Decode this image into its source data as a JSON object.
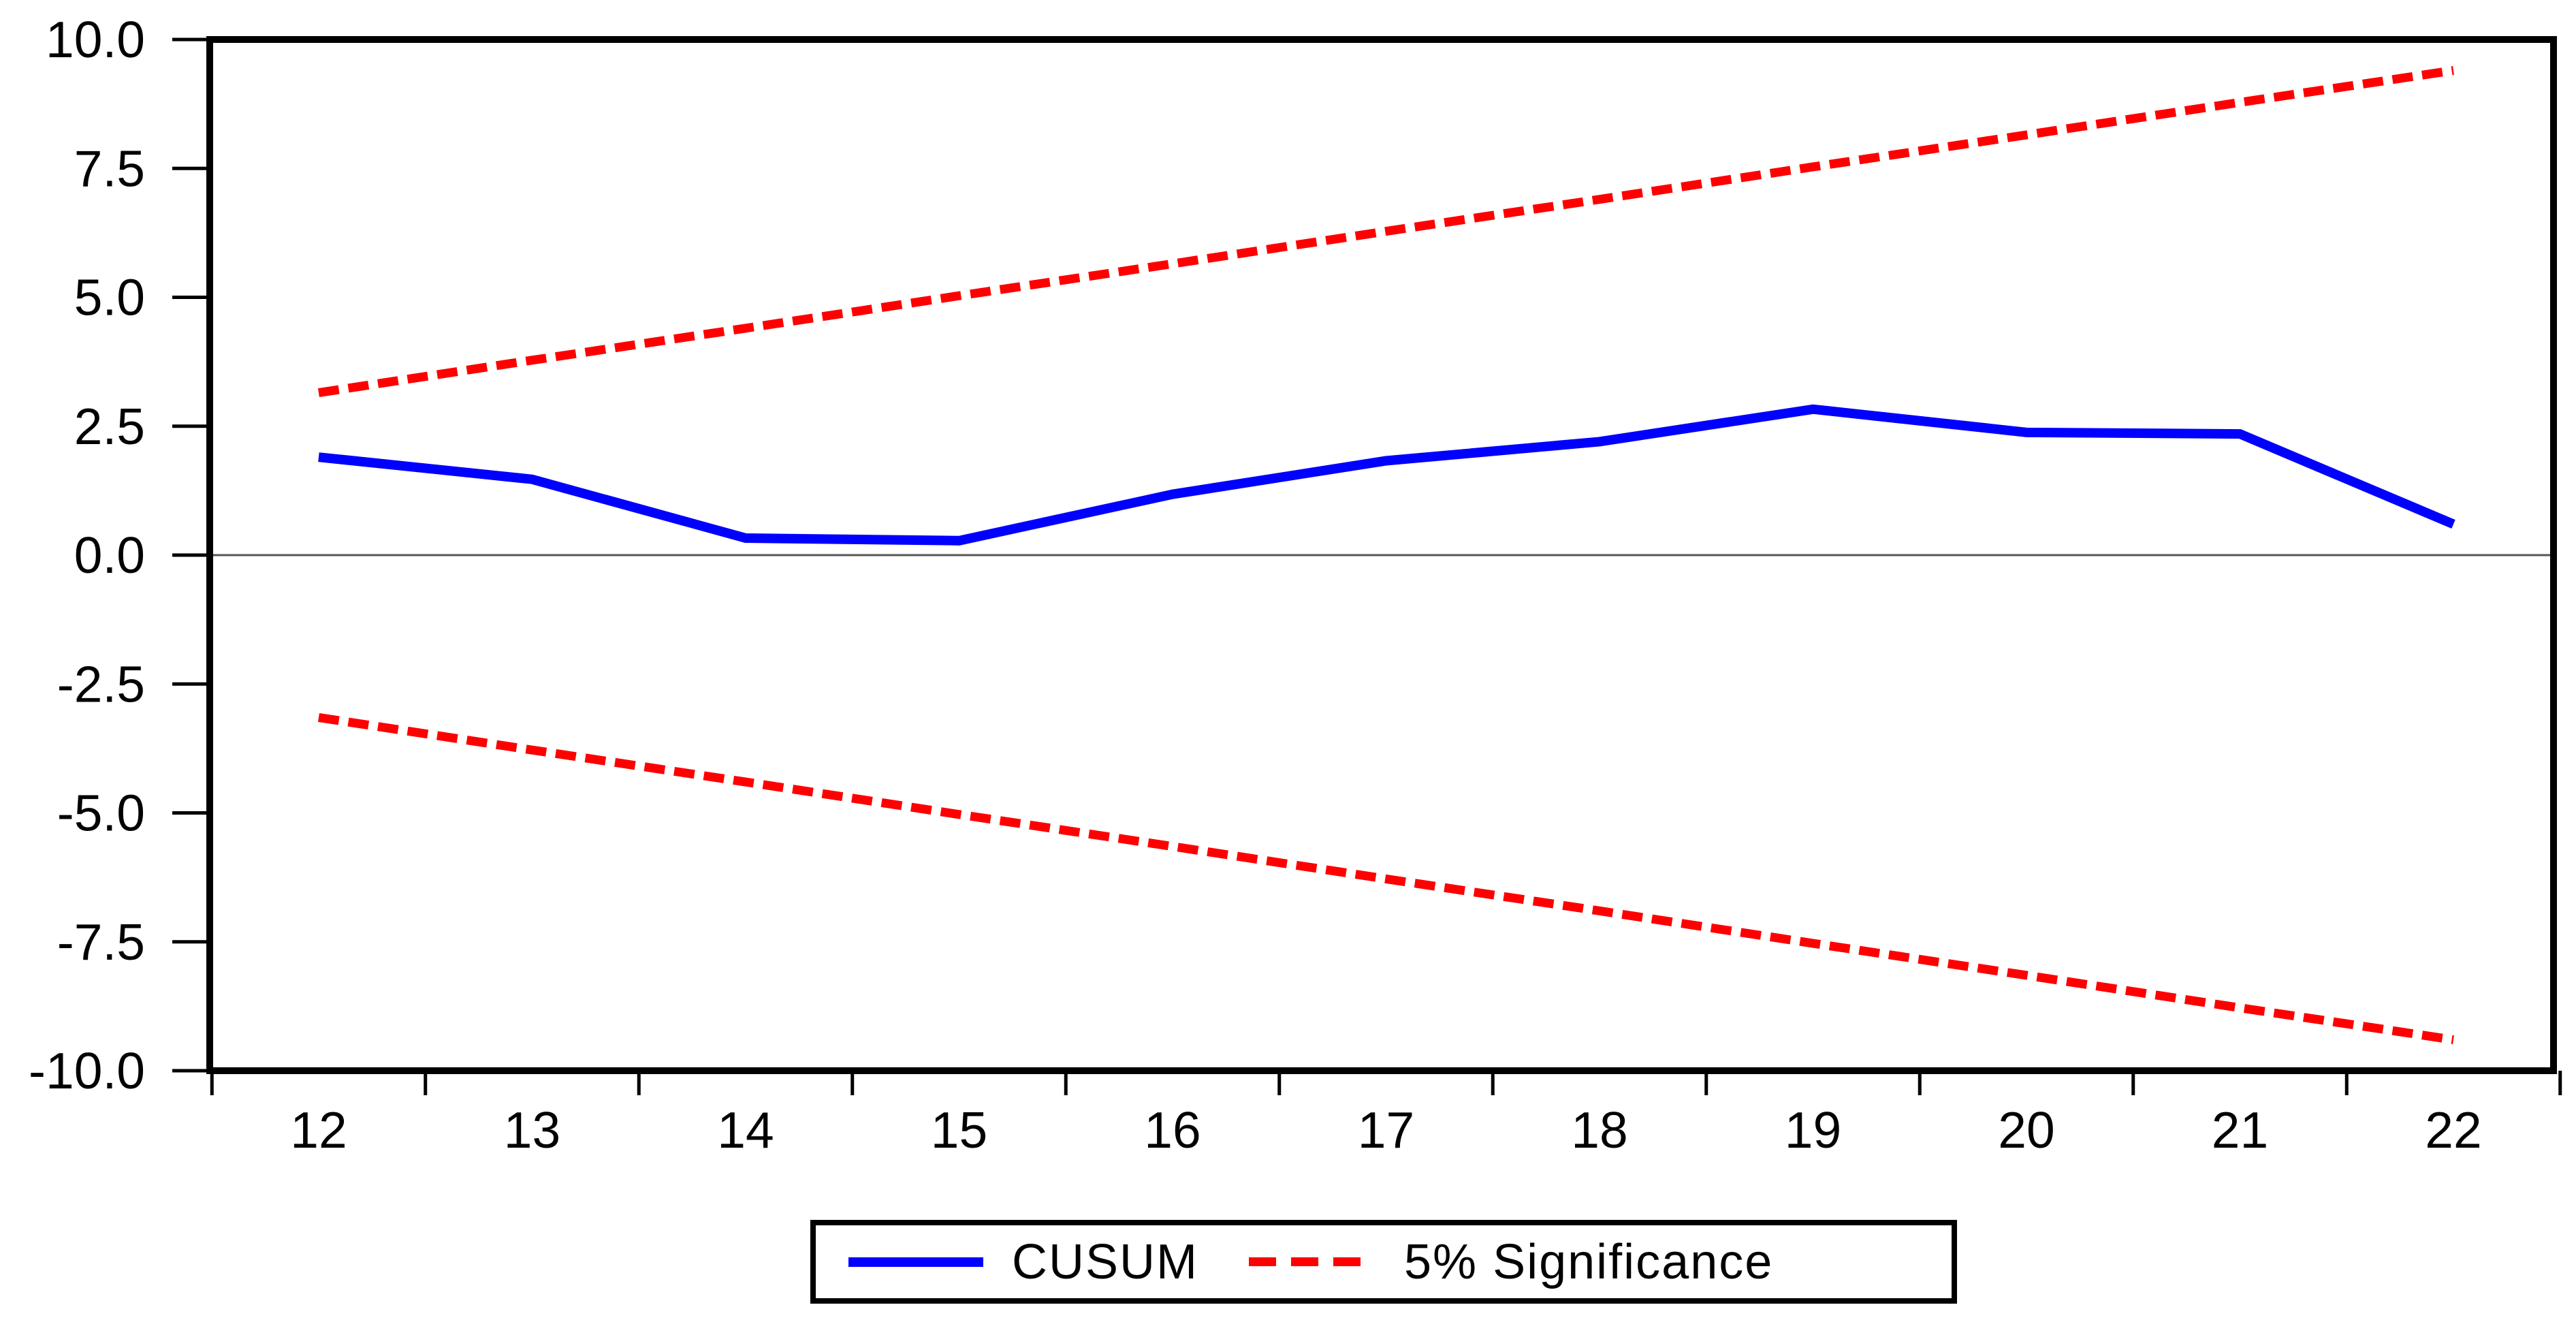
{
  "chart_data": {
    "type": "line",
    "title": "",
    "xlabel": "",
    "ylabel": "",
    "x": [
      12,
      13,
      14,
      15,
      16,
      17,
      18,
      19,
      20,
      21,
      22
    ],
    "x_tick_labels": [
      "12",
      "13",
      "14",
      "15",
      "16",
      "17",
      "18",
      "19",
      "20",
      "21",
      "22"
    ],
    "ylim": [
      -10,
      10
    ],
    "ytick_step": 2.5,
    "y_tick_values": [
      10,
      7.5,
      5,
      2.5,
      0,
      -2.5,
      -5,
      -7.5,
      -10
    ],
    "y_tick_labels": [
      "10.0",
      "7.5",
      "5.0",
      "2.5",
      "0.0",
      "-2.5",
      "-5.0",
      "-7.5",
      "-10.0"
    ],
    "grid": "zero-line-only",
    "zero_line_value": 0,
    "legend_position": "bottom-center",
    "series": [
      {
        "name": "CUSUM",
        "style": "solid",
        "color": "#0000FF",
        "values": [
          1.9,
          1.47,
          0.33,
          0.28,
          1.18,
          1.83,
          2.2,
          2.83,
          2.38,
          2.35,
          0.6
        ]
      },
      {
        "name": "5% Significance (upper)",
        "style": "dashed",
        "color": "#FF0000",
        "values": [
          3.15,
          3.78,
          4.4,
          5.03,
          5.65,
          6.28,
          6.9,
          7.53,
          8.15,
          8.78,
          9.4
        ]
      },
      {
        "name": "5% Significance (lower)",
        "style": "dashed",
        "color": "#FF0000",
        "values": [
          -3.15,
          -3.78,
          -4.4,
          -5.03,
          -5.65,
          -6.28,
          -6.9,
          -7.53,
          -8.15,
          -8.78,
          -9.4
        ]
      }
    ],
    "legend": {
      "cusum_label": "CUSUM",
      "significance_label": "5% Significance"
    },
    "colors": {
      "cusum": "#0000FF",
      "significance": "#FF0000",
      "axis": "#000000",
      "zero_line": "#555555",
      "background": "#FFFFFF"
    }
  }
}
